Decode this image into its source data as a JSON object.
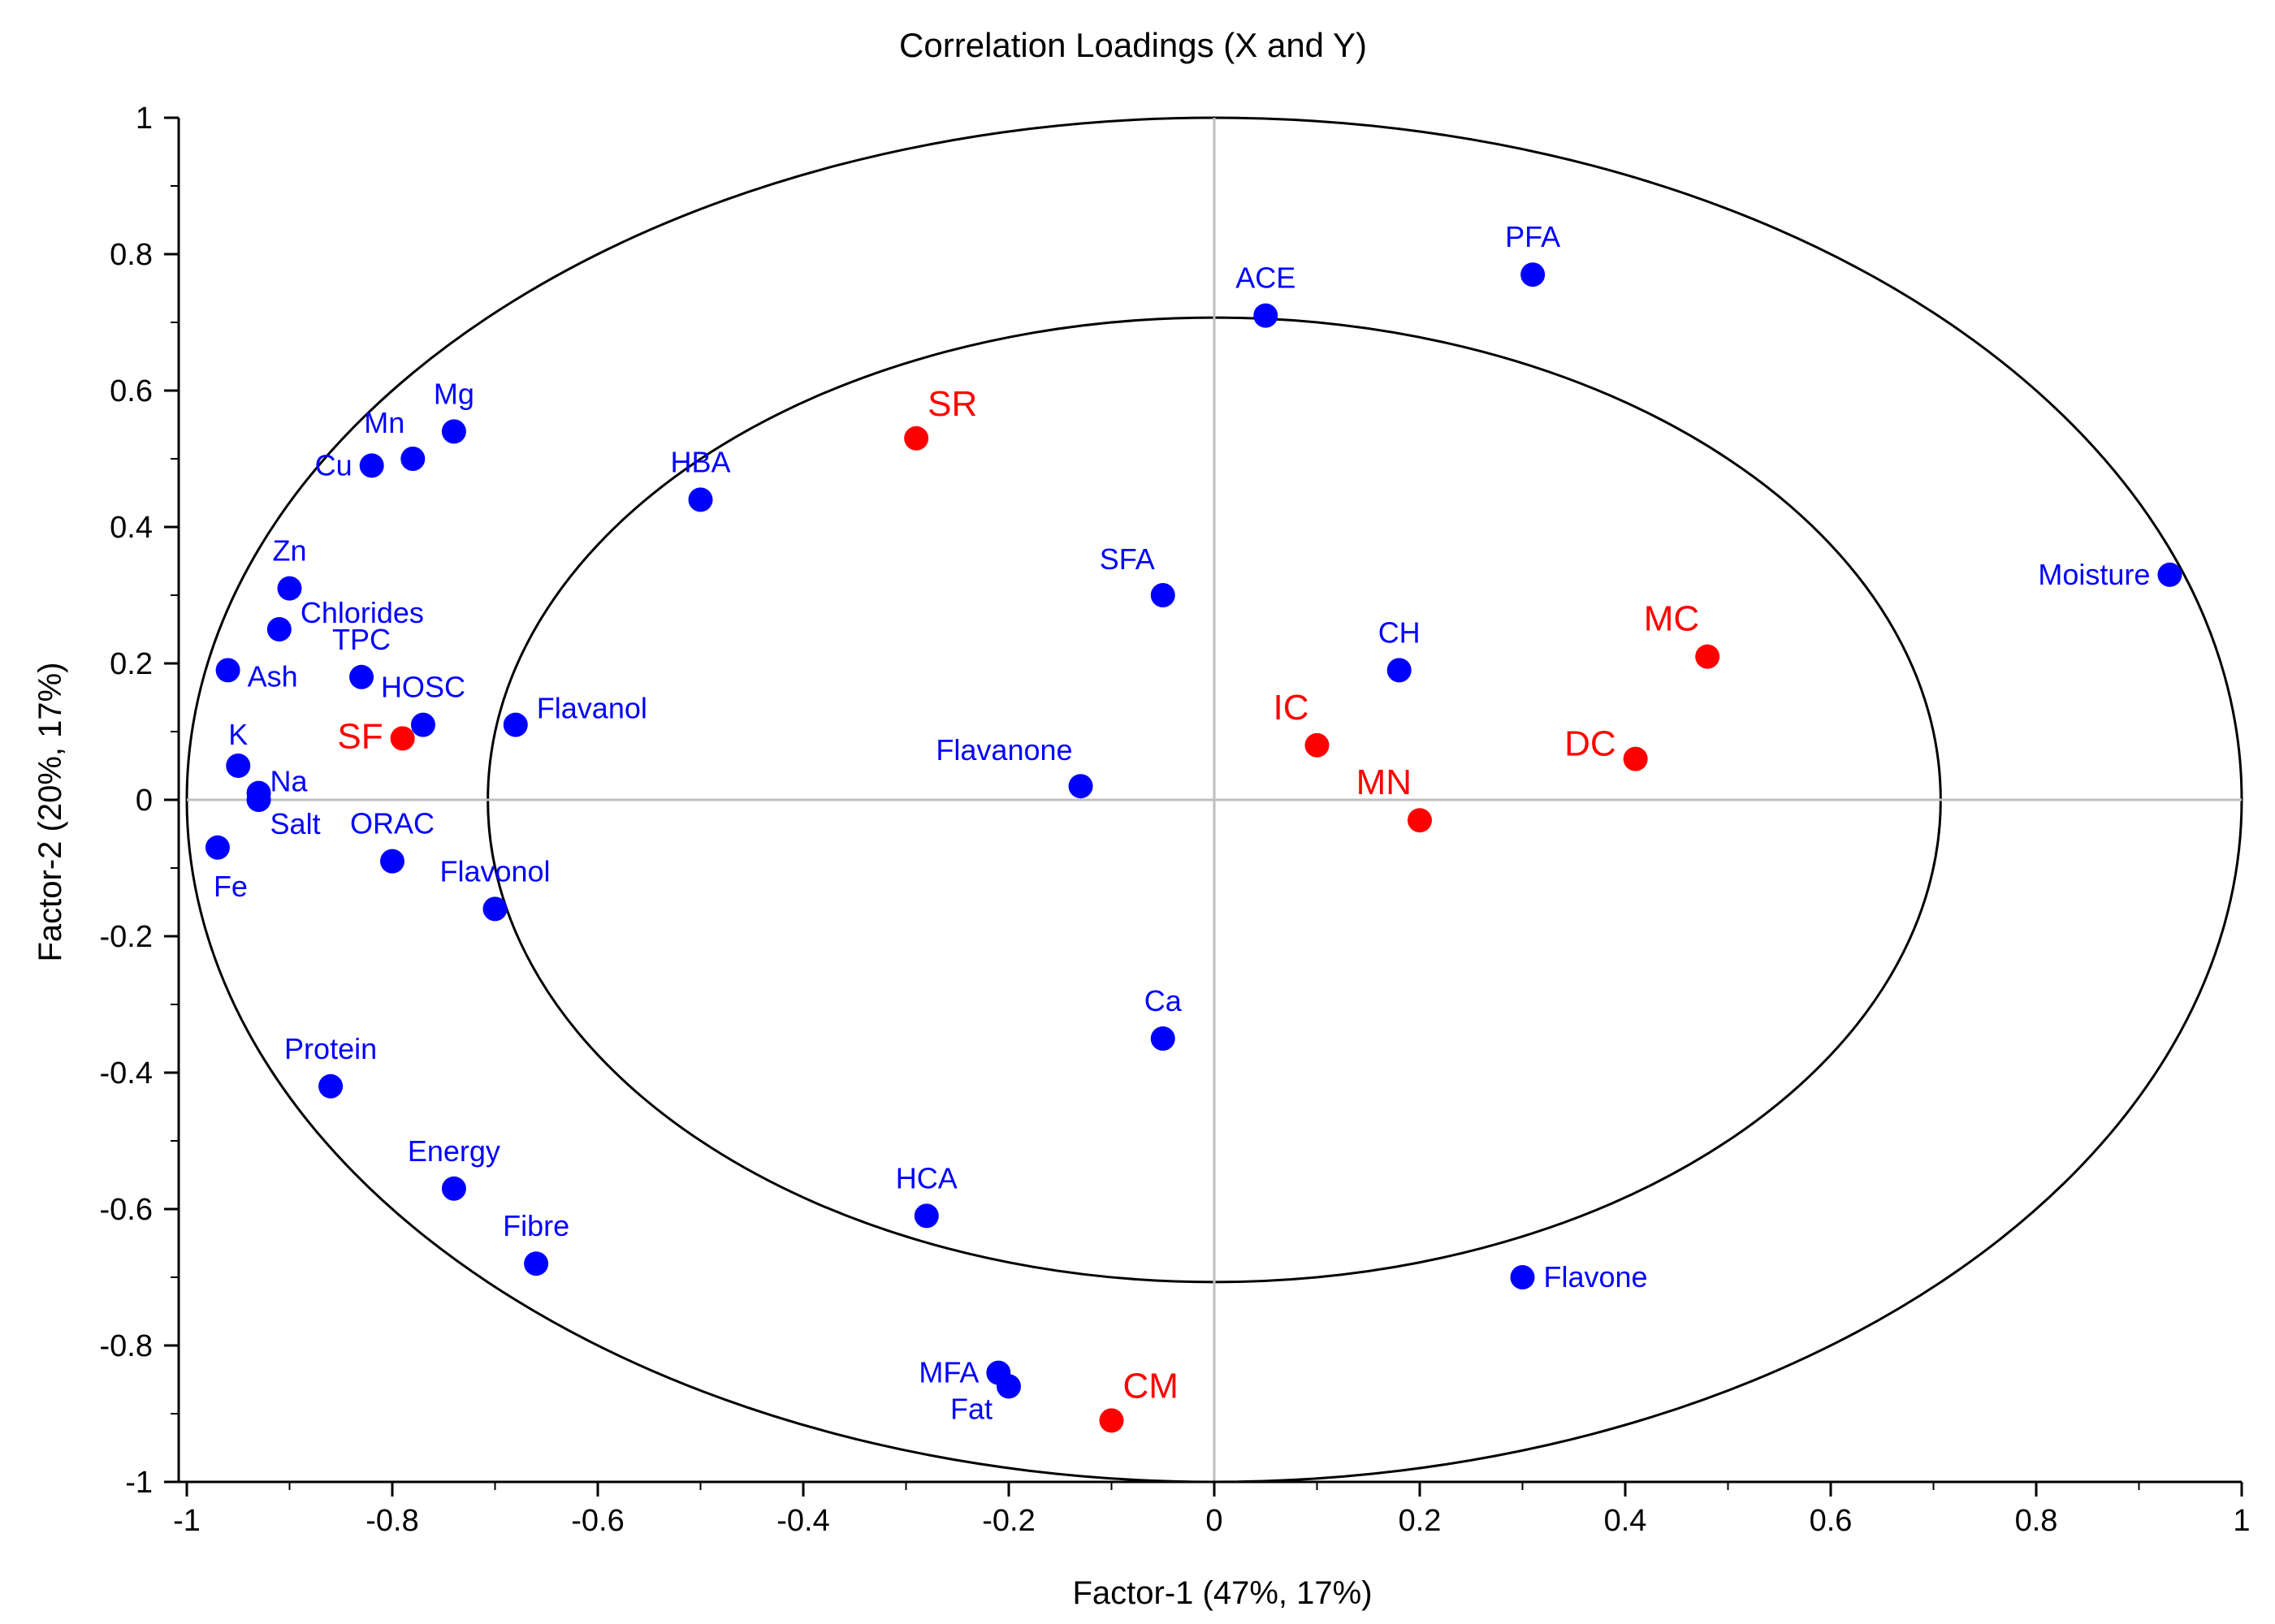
{
  "chart_data": {
    "type": "scatter",
    "title": "Correlation Loadings (X and Y)",
    "xlabel": "Factor-1 (47%, 17%)",
    "ylabel": "Factor-2 (20%, 17%)",
    "xlim": [
      -1,
      1
    ],
    "ylim": [
      -1,
      1
    ],
    "x_ticks": [
      -1,
      -0.8,
      -0.6,
      -0.4,
      -0.2,
      0,
      0.2,
      0.4,
      0.6,
      0.8,
      1
    ],
    "y_ticks": [
      -1,
      -0.8,
      -0.6,
      -0.4,
      -0.2,
      0,
      0.2,
      0.4,
      0.6,
      0.8,
      1
    ],
    "x_tick_labels": [
      "-1",
      "-0.8",
      "-0.6",
      "-0.4",
      "-0.2",
      "0",
      "0.2",
      "0.4",
      "0.6",
      "0.8",
      "1"
    ],
    "y_tick_labels": [
      "-1",
      "-0.8",
      "-0.6",
      "-0.4",
      "-0.2",
      "0",
      "0.2",
      "0.4",
      "0.6",
      "0.8",
      "1"
    ],
    "circles": [
      1.0,
      0.707
    ],
    "colors": {
      "x_variables": "#0000ff",
      "y_variables": "#ff0000",
      "axes": "#000000",
      "zero_lines": "#bfbfbf"
    },
    "series": [
      {
        "name": "X variables",
        "color": "#0000ff",
        "points": [
          {
            "label": "ACE",
            "x": 0.05,
            "y": 0.71,
            "anchor": "top"
          },
          {
            "label": "PFA",
            "x": 0.31,
            "y": 0.77,
            "anchor": "top"
          },
          {
            "label": "Mg",
            "x": -0.74,
            "y": 0.54,
            "anchor": "top"
          },
          {
            "label": "Mn",
            "x": -0.78,
            "y": 0.5,
            "anchor": "topleft"
          },
          {
            "label": "Cu",
            "x": -0.82,
            "y": 0.49,
            "anchor": "left"
          },
          {
            "label": "HBA",
            "x": -0.5,
            "y": 0.44,
            "anchor": "top"
          },
          {
            "label": "Zn",
            "x": -0.9,
            "y": 0.31,
            "anchor": "top"
          },
          {
            "label": "Chlorides",
            "x": -0.91,
            "y": 0.25,
            "anchor": "right-up"
          },
          {
            "label": "Ash",
            "x": -0.96,
            "y": 0.19,
            "anchor": "right-down"
          },
          {
            "label": "TPC",
            "x": -0.83,
            "y": 0.18,
            "anchor": "top"
          },
          {
            "label": "HOSC",
            "x": -0.77,
            "y": 0.11,
            "anchor": "top"
          },
          {
            "label": "Flavanol",
            "x": -0.68,
            "y": 0.11,
            "anchor": "right-up"
          },
          {
            "label": "K",
            "x": -0.95,
            "y": 0.05,
            "anchor": "top"
          },
          {
            "label": "Na",
            "x": -0.93,
            "y": 0.01,
            "anchor": "right-up"
          },
          {
            "label": "Salt",
            "x": -0.93,
            "y": 0.0,
            "anchor": "right-down"
          },
          {
            "label": "Fe",
            "x": -0.97,
            "y": -0.07,
            "anchor": "bottom"
          },
          {
            "label": "ORAC",
            "x": -0.8,
            "y": -0.09,
            "anchor": "top"
          },
          {
            "label": "Flavonol",
            "x": -0.7,
            "y": -0.16,
            "anchor": "top"
          },
          {
            "label": "SFA",
            "x": -0.05,
            "y": 0.3,
            "anchor": "topleft"
          },
          {
            "label": "CH",
            "x": 0.18,
            "y": 0.19,
            "anchor": "top"
          },
          {
            "label": "Moisture",
            "x": 0.93,
            "y": 0.33,
            "anchor": "left"
          },
          {
            "label": "Flavanone",
            "x": -0.13,
            "y": 0.02,
            "anchor": "topleft"
          },
          {
            "label": "Ca",
            "x": -0.05,
            "y": -0.35,
            "anchor": "top"
          },
          {
            "label": "Protein",
            "x": -0.86,
            "y": -0.42,
            "anchor": "top"
          },
          {
            "label": "Energy",
            "x": -0.74,
            "y": -0.57,
            "anchor": "top"
          },
          {
            "label": "Fibre",
            "x": -0.66,
            "y": -0.68,
            "anchor": "top"
          },
          {
            "label": "HCA",
            "x": -0.28,
            "y": -0.61,
            "anchor": "top"
          },
          {
            "label": "MFA",
            "x": -0.21,
            "y": -0.84,
            "anchor": "left"
          },
          {
            "label": "Fat",
            "x": -0.2,
            "y": -0.86,
            "anchor": "bottomleft"
          },
          {
            "label": "Flavone",
            "x": 0.3,
            "y": -0.7,
            "anchor": "right"
          }
        ]
      },
      {
        "name": "Y variables",
        "color": "#ff0000",
        "points": [
          {
            "label": "SR",
            "x": -0.29,
            "y": 0.53,
            "anchor": "topright"
          },
          {
            "label": "SF",
            "x": -0.79,
            "y": 0.09,
            "anchor": "left"
          },
          {
            "label": "MC",
            "x": 0.48,
            "y": 0.21,
            "anchor": "topleft"
          },
          {
            "label": "IC",
            "x": 0.1,
            "y": 0.08,
            "anchor": "topleft"
          },
          {
            "label": "DC",
            "x": 0.41,
            "y": 0.06,
            "anchor": "left-up"
          },
          {
            "label": "MN",
            "x": 0.2,
            "y": -0.03,
            "anchor": "topleft"
          },
          {
            "label": "CM",
            "x": -0.1,
            "y": -0.91,
            "anchor": "topright"
          }
        ]
      }
    ]
  }
}
